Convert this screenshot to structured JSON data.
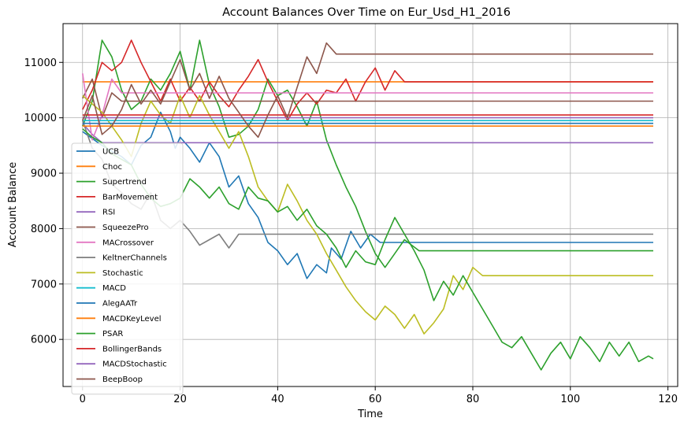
{
  "chart_data": {
    "type": "line",
    "title": "Account Balances Over Time on Eur_Usd_H1_2016",
    "xlabel": "Time",
    "ylabel": "Account Balance",
    "xlim": [
      -4,
      122
    ],
    "ylim": [
      5150,
      11700
    ],
    "xticks": [
      0,
      20,
      40,
      60,
      80,
      100,
      120
    ],
    "yticks": [
      6000,
      7000,
      8000,
      9000,
      10000,
      11000
    ],
    "grid": true,
    "legend_position": "center-left",
    "series": [
      {
        "name": "UCB",
        "color": "#1f77b4",
        "points": [
          [
            0,
            9750
          ],
          [
            4,
            9500
          ],
          [
            8,
            9300
          ],
          [
            10,
            9150
          ],
          [
            12,
            9500
          ],
          [
            14,
            9650
          ],
          [
            16,
            10100
          ],
          [
            18,
            9750
          ],
          [
            19,
            9450
          ],
          [
            20,
            9650
          ],
          [
            22,
            9450
          ],
          [
            24,
            9200
          ],
          [
            26,
            9550
          ],
          [
            28,
            9300
          ],
          [
            30,
            8750
          ],
          [
            32,
            8950
          ],
          [
            34,
            8450
          ],
          [
            36,
            8200
          ],
          [
            38,
            7750
          ],
          [
            40,
            7600
          ],
          [
            42,
            7350
          ],
          [
            44,
            7550
          ],
          [
            46,
            7100
          ],
          [
            48,
            7350
          ],
          [
            50,
            7200
          ],
          [
            51,
            7650
          ],
          [
            53,
            7450
          ],
          [
            55,
            7950
          ],
          [
            57,
            7650
          ],
          [
            59,
            7900
          ],
          [
            61,
            7750
          ],
          [
            117,
            7750
          ]
        ]
      },
      {
        "name": "Choc",
        "color": "#ff7f0e",
        "points": [
          [
            0,
            10650
          ],
          [
            117,
            10650
          ]
        ]
      },
      {
        "name": "Supertrend",
        "color": "#2ca02c",
        "points": [
          [
            0,
            9850
          ],
          [
            2,
            10300
          ],
          [
            4,
            11400
          ],
          [
            6,
            11100
          ],
          [
            8,
            10500
          ],
          [
            10,
            10150
          ],
          [
            12,
            10300
          ],
          [
            14,
            10700
          ],
          [
            16,
            10500
          ],
          [
            18,
            10800
          ],
          [
            20,
            11200
          ],
          [
            22,
            10500
          ],
          [
            24,
            11400
          ],
          [
            26,
            10600
          ],
          [
            28,
            10200
          ],
          [
            30,
            9650
          ],
          [
            32,
            9700
          ],
          [
            34,
            9850
          ],
          [
            36,
            10150
          ],
          [
            38,
            10700
          ],
          [
            40,
            10400
          ],
          [
            42,
            10500
          ],
          [
            44,
            10200
          ],
          [
            46,
            9850
          ],
          [
            48,
            10300
          ],
          [
            50,
            9600
          ],
          [
            52,
            9150
          ],
          [
            54,
            8750
          ],
          [
            56,
            8400
          ],
          [
            58,
            7950
          ],
          [
            60,
            7550
          ],
          [
            62,
            7300
          ],
          [
            64,
            7550
          ],
          [
            66,
            7800
          ],
          [
            69,
            7600
          ],
          [
            117,
            7600
          ]
        ]
      },
      {
        "name": "BarMovement",
        "color": "#d62728",
        "points": [
          [
            0,
            10150
          ],
          [
            2,
            10500
          ],
          [
            4,
            11000
          ],
          [
            6,
            10850
          ],
          [
            8,
            11000
          ],
          [
            10,
            11400
          ],
          [
            12,
            11000
          ],
          [
            14,
            10650
          ],
          [
            16,
            10300
          ],
          [
            18,
            10700
          ],
          [
            20,
            10300
          ],
          [
            22,
            10550
          ],
          [
            24,
            10300
          ],
          [
            26,
            10650
          ],
          [
            28,
            10400
          ],
          [
            30,
            10200
          ],
          [
            32,
            10500
          ],
          [
            34,
            10750
          ],
          [
            36,
            11050
          ],
          [
            38,
            10650
          ],
          [
            40,
            10300
          ],
          [
            42,
            9950
          ],
          [
            44,
            10250
          ],
          [
            46,
            10450
          ],
          [
            48,
            10250
          ],
          [
            50,
            10500
          ],
          [
            52,
            10450
          ],
          [
            54,
            10700
          ],
          [
            56,
            10300
          ],
          [
            58,
            10650
          ],
          [
            60,
            10900
          ],
          [
            62,
            10500
          ],
          [
            64,
            10850
          ],
          [
            66,
            10650
          ],
          [
            117,
            10650
          ]
        ]
      },
      {
        "name": "RSI",
        "color": "#9467bd",
        "points": [
          [
            0,
            9900
          ],
          [
            2,
            9700
          ],
          [
            4,
            9550
          ],
          [
            117,
            9550
          ]
        ]
      },
      {
        "name": "SqueezePro",
        "color": "#8c564b",
        "points": [
          [
            0,
            10350
          ],
          [
            2,
            10700
          ],
          [
            4,
            10000
          ],
          [
            6,
            10450
          ],
          [
            8,
            10300
          ],
          [
            117,
            10300
          ]
        ]
      },
      {
        "name": "MACrossover",
        "color": "#e377c2",
        "points": [
          [
            0,
            10800
          ],
          [
            2,
            9600
          ],
          [
            4,
            10050
          ],
          [
            6,
            10700
          ],
          [
            8,
            10450
          ],
          [
            117,
            10450
          ]
        ]
      },
      {
        "name": "KeltnerChannels",
        "color": "#7f7f7f",
        "points": [
          [
            0,
            9950
          ],
          [
            2,
            9450
          ],
          [
            4,
            9250
          ],
          [
            6,
            8800
          ],
          [
            8,
            8650
          ],
          [
            10,
            8450
          ],
          [
            12,
            8350
          ],
          [
            14,
            8650
          ],
          [
            16,
            8150
          ],
          [
            18,
            8000
          ],
          [
            20,
            8150
          ],
          [
            22,
            7950
          ],
          [
            24,
            7700
          ],
          [
            26,
            7800
          ],
          [
            28,
            7900
          ],
          [
            30,
            7650
          ],
          [
            32,
            7900
          ],
          [
            117,
            7900
          ]
        ]
      },
      {
        "name": "Stochastic",
        "color": "#bcbd22",
        "points": [
          [
            0,
            10400
          ],
          [
            2,
            10250
          ],
          [
            4,
            10100
          ],
          [
            6,
            9850
          ],
          [
            8,
            9600
          ],
          [
            10,
            9300
          ],
          [
            12,
            9900
          ],
          [
            14,
            10300
          ],
          [
            16,
            10050
          ],
          [
            18,
            9900
          ],
          [
            20,
            10400
          ],
          [
            22,
            10000
          ],
          [
            24,
            10400
          ],
          [
            26,
            10050
          ],
          [
            28,
            9750
          ],
          [
            30,
            9450
          ],
          [
            32,
            9750
          ],
          [
            34,
            9300
          ],
          [
            36,
            8750
          ],
          [
            38,
            8500
          ],
          [
            40,
            8300
          ],
          [
            42,
            8800
          ],
          [
            44,
            8500
          ],
          [
            46,
            8150
          ],
          [
            48,
            7900
          ],
          [
            50,
            7550
          ],
          [
            52,
            7250
          ],
          [
            54,
            6950
          ],
          [
            56,
            6700
          ],
          [
            58,
            6500
          ],
          [
            60,
            6350
          ],
          [
            62,
            6600
          ],
          [
            64,
            6450
          ],
          [
            66,
            6200
          ],
          [
            68,
            6450
          ],
          [
            70,
            6100
          ],
          [
            72,
            6300
          ],
          [
            74,
            6550
          ],
          [
            76,
            7150
          ],
          [
            78,
            6900
          ],
          [
            80,
            7300
          ],
          [
            82,
            7150
          ],
          [
            117,
            7150
          ]
        ]
      },
      {
        "name": "MACD",
        "color": "#17becf",
        "points": [
          [
            0,
            9950
          ],
          [
            117,
            9950
          ]
        ]
      },
      {
        "name": "AlegAATr",
        "color": "#1f77b4",
        "points": [
          [
            0,
            9900
          ],
          [
            117,
            9900
          ]
        ]
      },
      {
        "name": "MACDKeyLevel",
        "color": "#ff7f0e",
        "points": [
          [
            0,
            9850
          ],
          [
            117,
            9850
          ]
        ]
      },
      {
        "name": "PSAR",
        "color": "#2ca02c",
        "points": [
          [
            0,
            9800
          ],
          [
            2,
            9650
          ],
          [
            4,
            9550
          ],
          [
            6,
            9350
          ],
          [
            8,
            9250
          ],
          [
            10,
            9150
          ],
          [
            12,
            8800
          ],
          [
            14,
            8550
          ],
          [
            16,
            8400
          ],
          [
            18,
            8450
          ],
          [
            20,
            8550
          ],
          [
            22,
            8900
          ],
          [
            24,
            8750
          ],
          [
            26,
            8550
          ],
          [
            28,
            8750
          ],
          [
            30,
            8450
          ],
          [
            32,
            8350
          ],
          [
            34,
            8750
          ],
          [
            36,
            8550
          ],
          [
            38,
            8500
          ],
          [
            40,
            8300
          ],
          [
            42,
            8400
          ],
          [
            44,
            8150
          ],
          [
            46,
            8350
          ],
          [
            48,
            8050
          ],
          [
            50,
            7900
          ],
          [
            52,
            7650
          ],
          [
            54,
            7300
          ],
          [
            56,
            7600
          ],
          [
            58,
            7400
          ],
          [
            60,
            7350
          ],
          [
            62,
            7800
          ],
          [
            64,
            8200
          ],
          [
            66,
            7900
          ],
          [
            68,
            7600
          ],
          [
            70,
            7250
          ],
          [
            72,
            6700
          ],
          [
            74,
            7050
          ],
          [
            76,
            6800
          ],
          [
            78,
            7150
          ],
          [
            80,
            6850
          ],
          [
            82,
            6550
          ],
          [
            84,
            6250
          ],
          [
            86,
            5950
          ],
          [
            88,
            5850
          ],
          [
            90,
            6050
          ],
          [
            92,
            5750
          ],
          [
            94,
            5450
          ],
          [
            96,
            5750
          ],
          [
            98,
            5950
          ],
          [
            100,
            5650
          ],
          [
            102,
            6050
          ],
          [
            104,
            5850
          ],
          [
            106,
            5600
          ],
          [
            108,
            5950
          ],
          [
            110,
            5700
          ],
          [
            112,
            5950
          ],
          [
            114,
            5600
          ],
          [
            116,
            5700
          ],
          [
            117,
            5650
          ]
        ]
      },
      {
        "name": "BollingerBands",
        "color": "#d62728",
        "points": [
          [
            0,
            10050
          ],
          [
            117,
            10050
          ]
        ]
      },
      {
        "name": "MACDStochastic",
        "color": "#9467bd",
        "points": [
          [
            0,
            10000
          ],
          [
            117,
            10000
          ]
        ]
      },
      {
        "name": "BeepBoop",
        "color": "#8c564b",
        "points": [
          [
            0,
            9950
          ],
          [
            2,
            10400
          ],
          [
            4,
            9700
          ],
          [
            6,
            9850
          ],
          [
            8,
            10150
          ],
          [
            10,
            10600
          ],
          [
            12,
            10250
          ],
          [
            14,
            10500
          ],
          [
            16,
            10250
          ],
          [
            18,
            10650
          ],
          [
            20,
            11050
          ],
          [
            22,
            10500
          ],
          [
            24,
            10800
          ],
          [
            26,
            10350
          ],
          [
            28,
            10750
          ],
          [
            30,
            10350
          ],
          [
            32,
            10100
          ],
          [
            34,
            9850
          ],
          [
            36,
            9650
          ],
          [
            38,
            10050
          ],
          [
            40,
            10400
          ],
          [
            42,
            10000
          ],
          [
            44,
            10550
          ],
          [
            46,
            11100
          ],
          [
            48,
            10800
          ],
          [
            50,
            11350
          ],
          [
            52,
            11150
          ],
          [
            117,
            11150
          ]
        ]
      }
    ]
  }
}
